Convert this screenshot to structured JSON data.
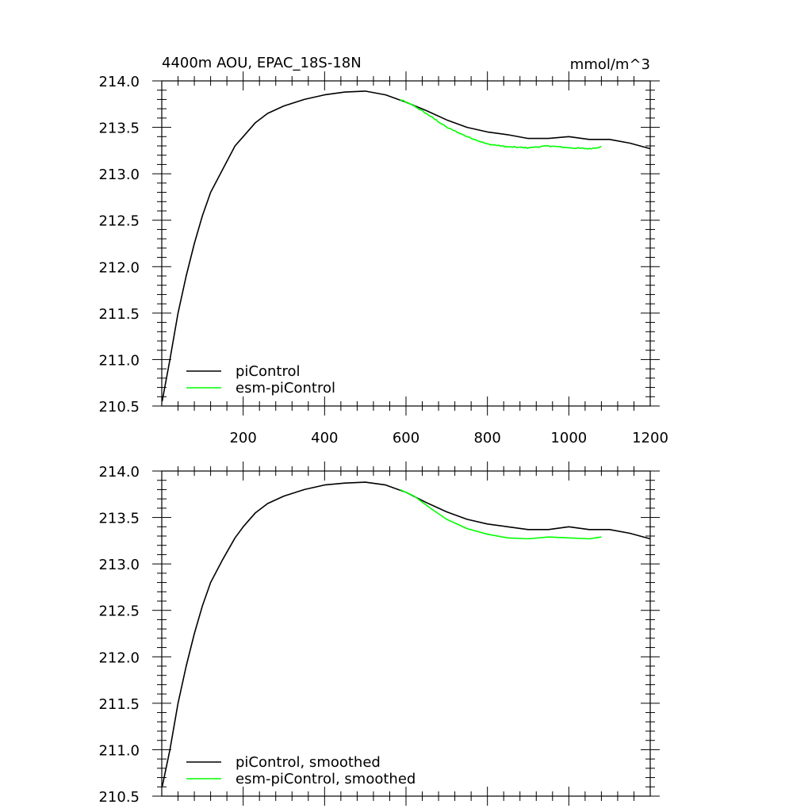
{
  "figure": {
    "title_left": "4400m AOU, EPAC_18S-18N",
    "title_right": "mmol/m^3"
  },
  "colors": {
    "picontrol": "#000000",
    "esm_picontrol": "#00ff00"
  },
  "chart_data": [
    {
      "type": "line",
      "panel": "raw",
      "xlim": [
        0,
        1200
      ],
      "ylim": [
        210.5,
        214.0
      ],
      "x_ticks": [
        200,
        400,
        600,
        800,
        1000,
        1200
      ],
      "x_tick_labels": [
        "200",
        "400",
        "600",
        "800",
        "1000",
        "1200"
      ],
      "y_ticks": [
        210.5,
        211.0,
        211.5,
        212.0,
        212.5,
        213.0,
        213.5,
        214.0
      ],
      "y_tick_labels": [
        "210.5",
        "211.0",
        "211.5",
        "212.0",
        "212.5",
        "213.0",
        "213.5",
        "214.0"
      ],
      "legend_position": "lower-left",
      "series": [
        {
          "name": "piControl",
          "color": "#000000",
          "x": [
            1,
            20,
            40,
            60,
            80,
            100,
            120,
            150,
            180,
            200,
            230,
            260,
            300,
            350,
            400,
            450,
            500,
            550,
            600,
            650,
            700,
            750,
            800,
            850,
            900,
            950,
            1000,
            1050,
            1100,
            1150,
            1200
          ],
          "y": [
            210.55,
            211.0,
            211.5,
            211.9,
            212.25,
            212.55,
            212.8,
            213.05,
            213.3,
            213.4,
            213.55,
            213.65,
            213.73,
            213.8,
            213.85,
            213.88,
            213.89,
            213.85,
            213.77,
            213.68,
            213.58,
            213.5,
            213.45,
            213.42,
            213.38,
            213.38,
            213.4,
            213.37,
            213.37,
            213.33,
            213.27
          ]
        },
        {
          "name": "esm-piControl",
          "color": "#00ff00",
          "x": [
            585,
            620,
            660,
            700,
            750,
            800,
            850,
            900,
            950,
            1000,
            1050,
            1080
          ],
          "y": [
            213.8,
            213.73,
            213.62,
            213.5,
            213.4,
            213.32,
            213.29,
            213.28,
            213.3,
            213.28,
            213.27,
            213.29
          ],
          "noise": 0.006
        }
      ]
    },
    {
      "type": "line",
      "panel": "smoothed",
      "xlim": [
        0,
        1200
      ],
      "ylim": [
        210.5,
        214.0
      ],
      "x_ticks": [
        200,
        400,
        600,
        800,
        1000,
        1200
      ],
      "y_ticks": [
        210.5,
        211.0,
        211.5,
        212.0,
        212.5,
        213.0,
        213.5,
        214.0
      ],
      "y_tick_labels": [
        "210.5",
        "211.0",
        "211.5",
        "212.0",
        "212.5",
        "213.0",
        "213.5",
        "214.0"
      ],
      "legend_position": "lower-left",
      "series": [
        {
          "name": "piControl, smoothed",
          "color": "#000000",
          "x": [
            1,
            20,
            40,
            60,
            80,
            100,
            120,
            150,
            180,
            200,
            230,
            260,
            300,
            350,
            400,
            450,
            500,
            550,
            600,
            650,
            700,
            750,
            800,
            850,
            900,
            950,
            1000,
            1050,
            1100,
            1150,
            1200
          ],
          "y": [
            210.6,
            211.0,
            211.5,
            211.9,
            212.25,
            212.55,
            212.8,
            213.05,
            213.28,
            213.4,
            213.55,
            213.65,
            213.73,
            213.8,
            213.85,
            213.87,
            213.88,
            213.85,
            213.77,
            213.66,
            213.56,
            213.48,
            213.43,
            213.4,
            213.37,
            213.37,
            213.4,
            213.37,
            213.37,
            213.33,
            213.27
          ]
        },
        {
          "name": "esm-piControl, smoothed",
          "color": "#00ff00",
          "x": [
            585,
            620,
            660,
            700,
            750,
            800,
            850,
            900,
            950,
            1000,
            1050,
            1080
          ],
          "y": [
            213.8,
            213.73,
            213.6,
            213.48,
            213.38,
            213.32,
            213.28,
            213.27,
            213.29,
            213.28,
            213.27,
            213.29
          ]
        }
      ]
    }
  ]
}
